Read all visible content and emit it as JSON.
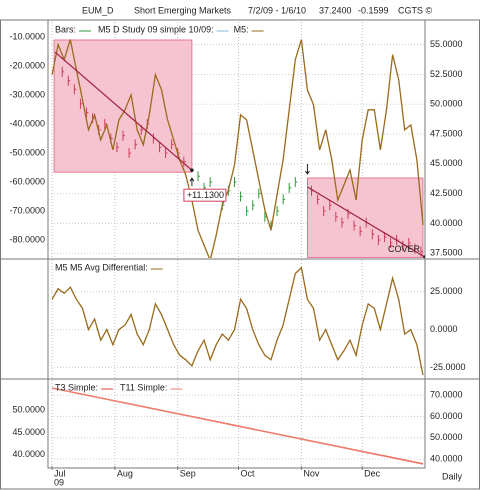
{
  "header": [
    "EUM_D",
    "Short Emerging Markets",
    "7/2/09 - 1/6/10",
    "37.2400",
    "-0.1599",
    "CGTS ©"
  ],
  "x_axis": {
    "xlim": [
      -2,
      184
    ],
    "xticks": [
      {
        "value": 0,
        "label": "Jul"
      },
      {
        "value": 31,
        "label": "Aug"
      },
      {
        "value": 62,
        "label": "Sep"
      },
      {
        "value": 92,
        "label": "Oct"
      },
      {
        "value": 123,
        "label": "Nov"
      },
      {
        "value": 153,
        "label": "Dec"
      }
    ],
    "year_label": "09",
    "period_label": "Daily"
  },
  "chart_data": [
    {
      "type": "line",
      "legend_study": "M5 D Study 09 simple 10/09:",
      "ylim": [
        -86.2,
        -4.8
      ],
      "y2lim": [
        37.1,
        56.9
      ],
      "yticks": [
        {
          "value": -10,
          "label": "-10.0000"
        },
        {
          "value": -20,
          "label": "-20.0000"
        },
        {
          "value": -30,
          "label": "-30.0000"
        },
        {
          "value": -40,
          "label": "-40.0000"
        },
        {
          "value": -50,
          "label": "-50.0000"
        },
        {
          "value": -60,
          "label": "-60.0000"
        },
        {
          "value": -70,
          "label": "-70.0000"
        },
        {
          "value": -80,
          "label": "-80.0000"
        }
      ],
      "y2ticks": [
        {
          "value": 55,
          "label": "55.0000"
        },
        {
          "value": 52.5,
          "label": "52.5000"
        },
        {
          "value": 50,
          "label": "50.0000"
        },
        {
          "value": 47.5,
          "label": "47.5000"
        },
        {
          "value": 45,
          "label": "45.0000"
        },
        {
          "value": 42.5,
          "label": "42.5000"
        },
        {
          "value": 40,
          "label": "40.0000"
        },
        {
          "value": 37.5,
          "label": "37.5000"
        }
      ],
      "regions": [
        {
          "x": [
            1,
            69
          ],
          "y": [
            -56.6,
            -11
          ]
        },
        {
          "x": [
            126,
            183
          ],
          "y": [
            -86,
            -58.6
          ]
        }
      ],
      "region_color": "#f6c4d0",
      "trend_lines": [
        {
          "x": [
            1.5,
            69
          ],
          "values": [
            -15.2,
            -55.9
          ]
        },
        {
          "x": [
            126,
            184
          ],
          "values": [
            -61.7,
            -85.9
          ]
        }
      ],
      "trend_color": "#a02040",
      "annotations": [
        "+11.1300",
        "COVER"
      ],
      "series": [
        {
          "name": "Bars:",
          "kind": "bars",
          "axis": "y",
          "color": "#2f9a3a",
          "region_bar_color": "#d03a5a",
          "x": [
            5,
            8,
            11,
            14,
            17,
            20,
            23,
            26,
            29,
            32,
            35,
            38,
            41,
            44,
            47,
            50,
            53,
            56,
            59,
            62,
            65,
            72,
            75,
            78,
            81,
            84,
            87,
            90,
            93,
            96,
            99,
            102,
            105,
            108,
            111,
            114,
            117,
            120,
            128,
            131,
            134,
            137,
            140,
            143,
            146,
            149,
            152,
            155,
            158,
            161,
            164,
            167,
            170,
            173,
            176,
            179,
            182
          ],
          "values": [
            -22,
            -25,
            -28,
            -33,
            -36,
            -38,
            -42,
            -40,
            -45,
            -48,
            -44,
            -50,
            -47,
            -42,
            -40,
            -45,
            -48,
            -50,
            -47,
            -50,
            -53,
            -58,
            -62,
            -60,
            -65,
            -68,
            -63,
            -60,
            -65,
            -70,
            -68,
            -64,
            -72,
            -75,
            -70,
            -66,
            -62,
            -60,
            -63,
            -66,
            -70,
            -68,
            -72,
            -74,
            -71,
            -75,
            -77,
            -74,
            -78,
            -80,
            -79,
            -81,
            -80,
            -82,
            -81,
            -83,
            -84
          ]
        },
        {
          "name": "M5:",
          "kind": "line",
          "axis": "y2",
          "color": "#9a6a1a",
          "x": [
            0,
            3,
            6,
            9,
            12,
            15,
            18,
            21,
            24,
            27,
            30,
            33,
            36,
            39,
            42,
            45,
            48,
            51,
            54,
            57,
            60,
            63,
            66,
            69,
            72,
            75,
            78,
            81,
            84,
            87,
            90,
            93,
            96,
            99,
            102,
            105,
            108,
            111,
            114,
            117,
            120,
            123,
            126,
            129,
            132,
            135,
            138,
            141,
            144,
            147,
            150,
            153,
            156,
            159,
            162,
            165,
            168,
            171,
            174,
            177,
            180,
            183
          ],
          "values": [
            52.48,
            55,
            53.74,
            55.42,
            52.9,
            50.37,
            47.85,
            49.11,
            47.01,
            48.27,
            46.17,
            48.69,
            49.53,
            50.79,
            47.85,
            46.59,
            49.11,
            52.48,
            51.21,
            48.69,
            47.01,
            45.33,
            44.06,
            41.96,
            39.43,
            38.17,
            36.91,
            39.01,
            41.54,
            42.8,
            44.9,
            49.11,
            48.69,
            46.17,
            43.64,
            41.12,
            39.43,
            42.38,
            45.33,
            49.53,
            53.74,
            55.42,
            51.21,
            49.95,
            46.17,
            47.85,
            45.33,
            41.96,
            43.22,
            44.48,
            41.96,
            47.01,
            49.53,
            49.53,
            46.17,
            49.53,
            54.16,
            52.06,
            47.85,
            48.27,
            45.33,
            39.86
          ]
        }
      ]
    },
    {
      "type": "line",
      "ylim": [
        -32,
        46
      ],
      "y2lim": [
        -32,
        46
      ],
      "y2ticks": [
        {
          "value": 25,
          "label": "25.0000"
        },
        {
          "value": 0,
          "label": "0.0000"
        },
        {
          "value": -25,
          "label": "-25.0000"
        }
      ],
      "series": [
        {
          "name": "M5 M5 Avg Differential:",
          "kind": "line",
          "axis": "y2",
          "color": "#9a6a1a",
          "x": [
            0,
            3,
            6,
            9,
            12,
            15,
            18,
            21,
            24,
            27,
            30,
            33,
            36,
            39,
            42,
            45,
            48,
            51,
            54,
            57,
            60,
            63,
            66,
            69,
            72,
            75,
            78,
            81,
            84,
            87,
            90,
            93,
            96,
            99,
            102,
            105,
            108,
            111,
            114,
            117,
            120,
            123,
            126,
            129,
            132,
            135,
            138,
            141,
            144,
            147,
            150,
            153,
            156,
            159,
            162,
            165,
            168,
            171,
            174,
            177,
            180,
            183
          ],
          "values": [
            20,
            27,
            24,
            28,
            20,
            14,
            0,
            7,
            -7,
            0,
            -10,
            0,
            3,
            10,
            -3,
            -10,
            0,
            17,
            10,
            0,
            -10,
            -17,
            -20,
            -24,
            -14,
            -7,
            -20,
            -10,
            -3,
            -7,
            0,
            20,
            14,
            0,
            -10,
            -17,
            -20,
            -7,
            3,
            20,
            37,
            41,
            20,
            14,
            -7,
            0,
            -10,
            -20,
            -14,
            -7,
            -17,
            3,
            17,
            14,
            0,
            17,
            34,
            20,
            -3,
            0,
            -10,
            -30
          ]
        }
      ]
    },
    {
      "type": "line",
      "ylim": [
        37.5,
        56.8
      ],
      "y2lim": [
        36.7,
        77.1
      ],
      "yticks": [
        {
          "value": 50,
          "label": "50.0000"
        },
        {
          "value": 45,
          "label": "45.0000"
        },
        {
          "value": 40,
          "label": "40.0000"
        }
      ],
      "y2ticks": [
        {
          "value": 70,
          "label": "70.0000"
        },
        {
          "value": 60,
          "label": "60.0000"
        },
        {
          "value": 50,
          "label": "50.0000"
        },
        {
          "value": 40,
          "label": "40.0000"
        }
      ],
      "series": [
        {
          "name": "T3 Simple:",
          "kind": "line",
          "axis": "y",
          "color": "#e04030",
          "x": [
            0,
            183
          ],
          "values": [
            55,
            38
          ]
        },
        {
          "name": "T11 Simple:",
          "kind": "line",
          "axis": "y2",
          "color": "#f08070",
          "x": [
            0,
            183
          ],
          "values": [
            73.3,
            37.6
          ]
        }
      ]
    }
  ]
}
